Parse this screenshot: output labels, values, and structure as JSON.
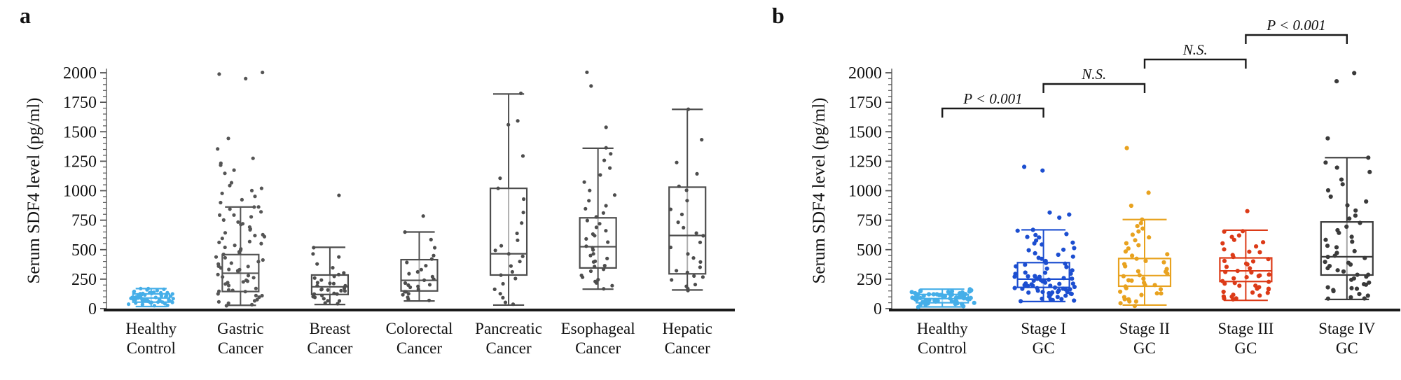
{
  "chart_data": [
    {
      "type": "boxplot-jitter",
      "panel_label": "a",
      "ylabel": "Serum SDF4 level (pg/ml)",
      "ylim": [
        0,
        2000
      ],
      "yticks": [
        0,
        250,
        500,
        750,
        1000,
        1250,
        1500,
        1750,
        2000
      ],
      "minor_tick_step": 50,
      "grid": false,
      "categories": [
        [
          "Healthy",
          "Control"
        ],
        [
          "Gastric",
          "Cancer"
        ],
        [
          "Breast",
          "Cancer"
        ],
        [
          "Colorectal",
          "Cancer"
        ],
        [
          "Pancreatic",
          "Cancer"
        ],
        [
          "Esophageal",
          "Cancer"
        ],
        [
          "Hepatic",
          "Cancer"
        ]
      ],
      "series": [
        {
          "name": "Healthy Control",
          "color": "#45AEE8",
          "box": {
            "low": 18,
            "q1": 55,
            "median": 90,
            "q3": 125,
            "high": 170
          },
          "points": [
            20,
            28,
            33,
            38,
            42,
            46,
            50,
            53,
            56,
            59,
            62,
            65,
            68,
            70,
            72,
            75,
            78,
            80,
            82,
            85,
            88,
            90,
            92,
            95,
            98,
            100,
            103,
            106,
            109,
            112,
            115,
            118,
            121,
            124,
            127,
            130,
            133,
            136,
            140,
            144,
            148,
            152,
            156,
            160,
            165,
            170,
            35,
            47,
            58,
            69,
            81,
            93,
            104,
            116,
            129,
            141,
            153,
            64,
            86,
            97,
            108,
            74
          ]
        },
        {
          "name": "Gastric Cancer",
          "color": "#555555",
          "box": {
            "low": 28,
            "q1": 145,
            "median": 300,
            "q3": 458,
            "high": 862
          },
          "points": [
            2005,
            1985,
            1950,
            1445,
            1360,
            1270,
            1225,
            1215,
            1180,
            1155,
            1060,
            1040,
            1020,
            1000,
            985,
            955,
            930,
            905,
            870,
            855,
            840,
            820,
            800,
            785,
            770,
            755,
            740,
            725,
            710,
            695,
            680,
            665,
            650,
            635,
            620,
            605,
            590,
            575,
            560,
            545,
            530,
            515,
            500,
            488,
            476,
            464,
            452,
            440,
            428,
            416,
            404,
            392,
            380,
            368,
            356,
            344,
            332,
            320,
            308,
            296,
            284,
            272,
            260,
            248,
            236,
            224,
            212,
            200,
            188,
            176,
            164,
            152,
            140,
            128,
            116,
            104,
            92,
            80,
            68,
            56,
            45,
            38,
            32,
            150,
            330
          ]
        },
        {
          "name": "Breast Cancer",
          "color": "#4D4D4D",
          "box": {
            "low": 35,
            "q1": 120,
            "median": 185,
            "q3": 285,
            "high": 520
          },
          "points": [
            965,
            520,
            470,
            430,
            380,
            340,
            310,
            285,
            270,
            255,
            240,
            228,
            215,
            205,
            196,
            188,
            180,
            172,
            165,
            158,
            150,
            142,
            135,
            128,
            120,
            112,
            105,
            95,
            85,
            72,
            60,
            48,
            35
          ]
        },
        {
          "name": "Colorectal Cancer",
          "color": "#4D4D4D",
          "box": {
            "low": 65,
            "q1": 150,
            "median": 240,
            "q3": 415,
            "high": 650
          },
          "points": [
            785,
            650,
            590,
            520,
            450,
            415,
            390,
            360,
            335,
            310,
            290,
            270,
            255,
            240,
            225,
            210,
            198,
            185,
            172,
            160,
            150,
            140,
            125,
            110,
            95,
            80,
            65
          ]
        },
        {
          "name": "Pancreatic Cancer",
          "color": "#4D4D4D",
          "box": {
            "low": 30,
            "q1": 285,
            "median": 465,
            "q3": 1020,
            "high": 1820
          },
          "points": [
            1820,
            1600,
            1560,
            1300,
            1100,
            1020,
            930,
            820,
            720,
            640,
            580,
            530,
            490,
            465,
            440,
            400,
            360,
            320,
            285,
            250,
            210,
            170,
            130,
            95,
            60,
            30
          ]
        },
        {
          "name": "Esophageal Cancer",
          "color": "#4D4D4D",
          "box": {
            "low": 165,
            "q1": 345,
            "median": 525,
            "q3": 770,
            "high": 1360
          },
          "points": [
            2010,
            1880,
            1540,
            1360,
            1310,
            1250,
            1190,
            1130,
            1070,
            1010,
            960,
            920,
            880,
            845,
            810,
            780,
            750,
            720,
            690,
            660,
            635,
            610,
            585,
            560,
            535,
            510,
            490,
            470,
            450,
            430,
            410,
            390,
            370,
            350,
            330,
            310,
            290,
            270,
            250,
            230,
            210,
            190,
            170
          ]
        },
        {
          "name": "Hepatic Cancer",
          "color": "#4D4D4D",
          "box": {
            "low": 158,
            "q1": 295,
            "median": 620,
            "q3": 1030,
            "high": 1690
          },
          "points": [
            1690,
            1440,
            1240,
            1150,
            1030,
            1000,
            920,
            850,
            790,
            730,
            680,
            640,
            620,
            570,
            520,
            470,
            430,
            390,
            350,
            320,
            300,
            285,
            260,
            235,
            210,
            190,
            175,
            160
          ]
        }
      ],
      "brackets": []
    },
    {
      "type": "boxplot-jitter",
      "panel_label": "b",
      "ylabel": "Serum SDF4 level (pg/ml)",
      "ylim": [
        0,
        2000
      ],
      "yticks": [
        0,
        250,
        500,
        750,
        1000,
        1250,
        1500,
        1750,
        2000
      ],
      "minor_tick_step": 50,
      "grid": false,
      "categories": [
        [
          "Healthy",
          "Control"
        ],
        [
          "Stage I",
          "GC"
        ],
        [
          "Stage II",
          "GC"
        ],
        [
          "Stage III",
          "GC"
        ],
        [
          "Stage IV",
          "GC"
        ]
      ],
      "series": [
        {
          "name": "Healthy Control",
          "color": "#45AEE8",
          "box": {
            "low": 15,
            "q1": 50,
            "median": 85,
            "q3": 120,
            "high": 165
          },
          "points": [
            18,
            25,
            31,
            37,
            42,
            46,
            50,
            53,
            56,
            59,
            62,
            65,
            68,
            70,
            72,
            75,
            78,
            80,
            82,
            85,
            88,
            90,
            92,
            95,
            98,
            100,
            103,
            106,
            109,
            112,
            115,
            118,
            121,
            124,
            127,
            130,
            133,
            136,
            140,
            144,
            148,
            152,
            156,
            160,
            165,
            44,
            57,
            63,
            69,
            74,
            81,
            87,
            93,
            99,
            105,
            111,
            117,
            123,
            129,
            135,
            147,
            158
          ]
        },
        {
          "name": "Stage I GC",
          "color": "#1C4ED0",
          "box": {
            "low": 60,
            "q1": 180,
            "median": 250,
            "q3": 390,
            "high": 668
          },
          "points": [
            1200,
            1165,
            810,
            800,
            775,
            668,
            655,
            640,
            625,
            610,
            595,
            580,
            565,
            550,
            535,
            520,
            505,
            490,
            476,
            462,
            448,
            434,
            420,
            407,
            394,
            381,
            368,
            356,
            344,
            332,
            320,
            309,
            298,
            287,
            276,
            266,
            256,
            246,
            236,
            227,
            218,
            209,
            200,
            192,
            184,
            176,
            168,
            161,
            154,
            147,
            140,
            134,
            128,
            122,
            116,
            110,
            104,
            98,
            92,
            86,
            80,
            74,
            68,
            62,
            300,
            280,
            260,
            240,
            220,
            205,
            190,
            175,
            160,
            250,
            265,
            235,
            215,
            195,
            185,
            170,
            150,
            145,
            138,
            130
          ]
        },
        {
          "name": "Stage II GC",
          "color": "#E8A21F",
          "box": {
            "low": 30,
            "q1": 190,
            "median": 280,
            "q3": 425,
            "high": 755
          },
          "points": [
            1355,
            990,
            870,
            755,
            730,
            705,
            680,
            655,
            630,
            605,
            580,
            555,
            530,
            505,
            480,
            460,
            440,
            420,
            400,
            385,
            370,
            355,
            340,
            325,
            310,
            295,
            280,
            268,
            256,
            244,
            232,
            220,
            208,
            196,
            184,
            172,
            160,
            148,
            136,
            124,
            112,
            100,
            88,
            76,
            64,
            52,
            40,
            30
          ]
        },
        {
          "name": "Stage III GC",
          "color": "#DC3A17",
          "box": {
            "low": 70,
            "q1": 230,
            "median": 320,
            "q3": 430,
            "high": 665
          },
          "points": [
            820,
            665,
            645,
            625,
            605,
            585,
            565,
            545,
            525,
            505,
            488,
            472,
            456,
            440,
            425,
            410,
            396,
            382,
            368,
            354,
            340,
            328,
            316,
            304,
            292,
            280,
            270,
            260,
            250,
            240,
            230,
            221,
            212,
            203,
            194,
            185,
            176,
            167,
            158,
            149,
            140,
            131,
            122,
            113,
            104,
            95,
            86,
            78,
            72
          ]
        },
        {
          "name": "Stage IV GC",
          "color": "#3A3A3A",
          "box": {
            "low": 78,
            "q1": 285,
            "median": 440,
            "q3": 735,
            "high": 1280
          },
          "points": [
            2005,
            1930,
            1440,
            1280,
            1240,
            1190,
            1150,
            1100,
            1050,
            1000,
            955,
            910,
            870,
            830,
            795,
            760,
            730,
            700,
            670,
            640,
            615,
            590,
            565,
            540,
            515,
            495,
            475,
            455,
            438,
            421,
            404,
            388,
            372,
            356,
            340,
            325,
            310,
            296,
            282,
            268,
            254,
            240,
            226,
            213,
            200,
            188,
            176,
            164,
            152,
            140,
            128,
            116,
            104,
            92,
            80
          ]
        }
      ],
      "brackets": [
        {
          "from": 0,
          "to": 1,
          "label": "P < 0.001",
          "level": 0
        },
        {
          "from": 1,
          "to": 2,
          "label": "N.S.",
          "level": 1
        },
        {
          "from": 2,
          "to": 3,
          "label": "N.S.",
          "level": 2
        },
        {
          "from": 3,
          "to": 4,
          "label": "P < 0.001",
          "level": 3
        }
      ]
    }
  ]
}
